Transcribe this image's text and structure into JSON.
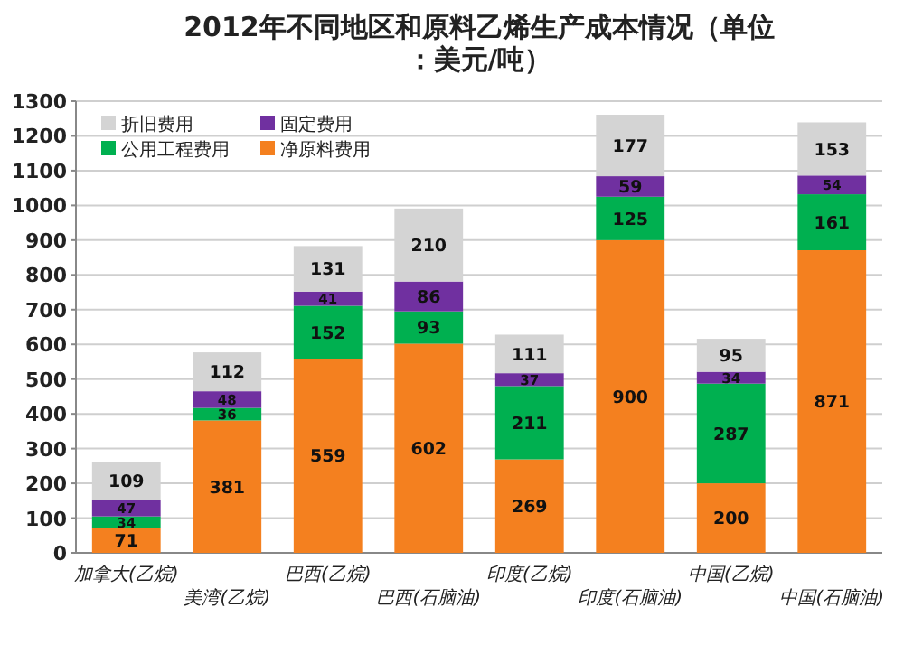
{
  "chart_data": {
    "type": "bar",
    "stacked": true,
    "title": "2012年不同地区和原料乙烯生产成本情况（单位：美元/吨）",
    "categories": [
      "加拿大(乙烷)",
      "美湾(乙烷)",
      "巴西(乙烷)",
      "巴西(石脑油)",
      "印度(乙烷)",
      "印度(石脑油)",
      "中国(乙烷)",
      "中国(石脑油)"
    ],
    "series": [
      {
        "name": "净原料费用",
        "color": "#f4801f",
        "values": [
          71,
          381,
          559,
          602,
          269,
          900,
          200,
          871
        ]
      },
      {
        "name": "公用工程费用",
        "color": "#00b050",
        "values": [
          34,
          36,
          152,
          93,
          211,
          125,
          287,
          161
        ]
      },
      {
        "name": "固定费用",
        "color": "#7030a0",
        "values": [
          47,
          48,
          41,
          86,
          37,
          59,
          34,
          54
        ]
      },
      {
        "name": "折旧费用",
        "color": "#d4d4d4",
        "values": [
          109,
          112,
          131,
          210,
          111,
          177,
          95,
          153
        ]
      }
    ],
    "ylim": [
      0,
      1300
    ],
    "yticks": [
      0,
      100,
      200,
      300,
      400,
      500,
      600,
      700,
      800,
      900,
      1000,
      1100,
      1200,
      1300
    ],
    "grid": "y",
    "legend": "top left",
    "data_labels": true
  }
}
